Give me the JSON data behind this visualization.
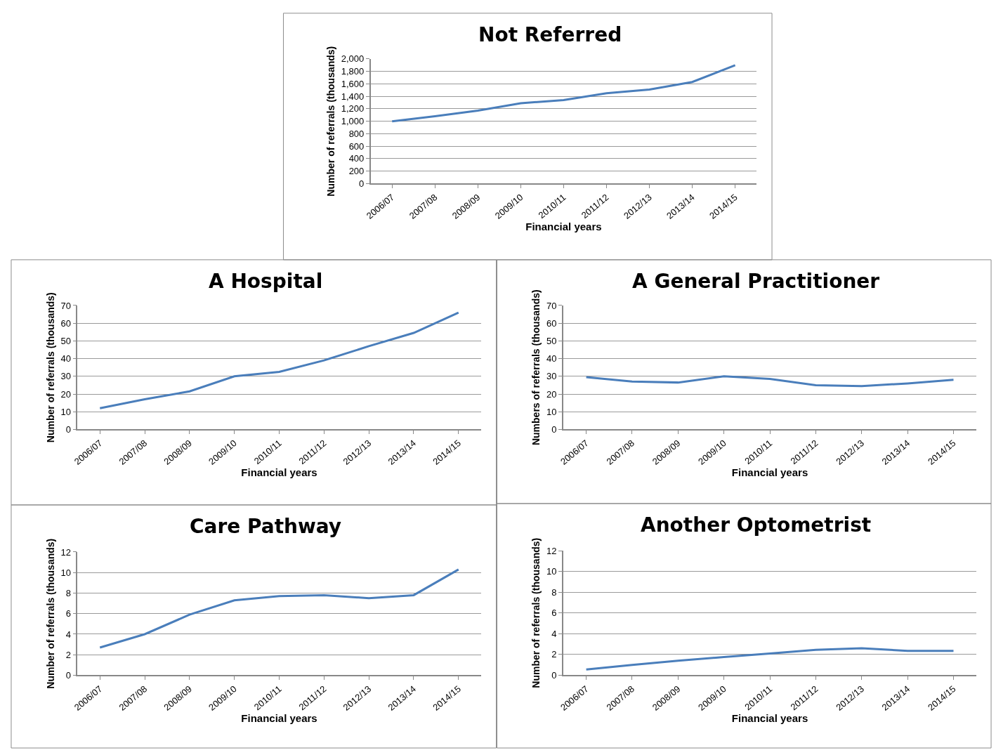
{
  "chart_data": [
    {
      "type": "line",
      "title": "Not Referred",
      "xlabel": "Financial years",
      "ylabel": "Number of referrals (thousands)",
      "categories": [
        "2006/07",
        "2007/08",
        "2008/09",
        "2009/10",
        "2010/11",
        "2011/12",
        "2012/13",
        "2013/14",
        "2014/15"
      ],
      "series": [
        {
          "color": "#4a7ebb",
          "values": [
            1000,
            1080,
            1170,
            1290,
            1340,
            1450,
            1510,
            1630,
            1900
          ]
        }
      ],
      "ylim": [
        0,
        2000
      ],
      "yticks": [
        0,
        200,
        400,
        600,
        800,
        {
          "value": 1000,
          "label": "1,000"
        },
        {
          "value": 1200,
          "label": "1,200"
        },
        {
          "value": 1400,
          "label": "1,400"
        },
        {
          "value": 1600,
          "label": "1,600"
        },
        {
          "value": 1800,
          "label": "1,800"
        },
        {
          "value": 2000,
          "label": "2,000"
        }
      ],
      "grid": "y",
      "marker": "none",
      "line_style": "solid"
    },
    {
      "type": "line",
      "title": "A Hospital",
      "xlabel": "Financial years",
      "ylabel": "Number of referrals (thousands)",
      "categories": [
        "2006/07",
        "2007/08",
        "2008/09",
        "2009/10",
        "2010/11",
        "2011/12",
        "2012/13",
        "2013/14",
        "2014/15"
      ],
      "series": [
        {
          "color": "#4a7ebb",
          "values": [
            12,
            17,
            21.5,
            30,
            32.5,
            39,
            47,
            54.5,
            66
          ]
        }
      ],
      "ylim": [
        0,
        70
      ],
      "yticks": [
        0,
        10,
        20,
        30,
        40,
        50,
        60,
        70
      ],
      "grid": "y",
      "marker": "none",
      "line_style": "solid"
    },
    {
      "type": "line",
      "title": "A General Practitioner",
      "xlabel": "Financial years",
      "ylabel": "Numbers of referrals (thousands)",
      "categories": [
        "2006/07",
        "2007/08",
        "2008/09",
        "2009/10",
        "2010/11",
        "2011/12",
        "2012/13",
        "2013/14",
        "2014/15"
      ],
      "series": [
        {
          "color": "#4a7ebb",
          "values": [
            29.5,
            27,
            26.5,
            30,
            28.5,
            25,
            24.5,
            26,
            28
          ]
        }
      ],
      "ylim": [
        0,
        70
      ],
      "yticks": [
        0,
        10,
        20,
        30,
        40,
        50,
        60,
        70
      ],
      "grid": "y",
      "marker": "none",
      "line_style": "solid"
    },
    {
      "type": "line",
      "title": "Care Pathway",
      "xlabel": "Financial years",
      "ylabel": "Number of referrals (thousands)",
      "categories": [
        "2006/07",
        "2007/08",
        "2008/09",
        "2009/10",
        "2010/11",
        "2011/12",
        "2012/13",
        "2013/14",
        "2014/15"
      ],
      "series": [
        {
          "color": "#4a7ebb",
          "values": [
            2.7,
            4.0,
            5.9,
            7.3,
            7.7,
            7.8,
            7.5,
            7.8,
            10.3
          ]
        }
      ],
      "ylim": [
        0,
        12
      ],
      "yticks": [
        0,
        2,
        4,
        6,
        8,
        10,
        12
      ],
      "grid": "y",
      "marker": "none",
      "line_style": "solid"
    },
    {
      "type": "line",
      "title": "Another Optometrist",
      "xlabel": "Financial years",
      "ylabel": "Number of referrals (thousands)",
      "categories": [
        "2006/07",
        "2007/08",
        "2008/09",
        "2009/10",
        "2010/11",
        "2011/12",
        "2012/13",
        "2013/14",
        "2014/15"
      ],
      "series": [
        {
          "color": "#4a7ebb",
          "values": [
            0.55,
            1.0,
            1.4,
            1.75,
            2.1,
            2.45,
            2.6,
            2.35,
            2.35
          ]
        }
      ],
      "ylim": [
        0,
        12
      ],
      "yticks": [
        0,
        2,
        4,
        6,
        8,
        10,
        12
      ],
      "grid": "y",
      "marker": "none",
      "line_style": "solid"
    }
  ]
}
